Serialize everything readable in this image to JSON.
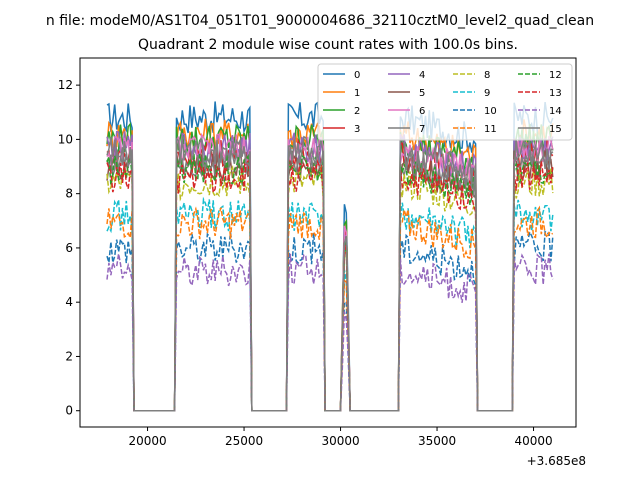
{
  "figure": {
    "suptitle": "n file: modeM0/AS1T04_051T01_9000004686_32110cztM0_level2_quad_clean",
    "offset_label": "+3.685e8"
  },
  "chart_data": {
    "type": "line",
    "title": "Quadrant 2 module wise count rates with 100.0s bins.",
    "xlabel": "",
    "ylabel": "",
    "xlim": [
      16500,
      42200
    ],
    "ylim": [
      -0.6,
      13.0
    ],
    "x_offset": 368500000,
    "xticks": [
      20000,
      25000,
      30000,
      35000,
      40000
    ],
    "xtick_labels": [
      "20000",
      "25000",
      "30000",
      "35000",
      "40000"
    ],
    "yticks": [
      0,
      2,
      4,
      6,
      8,
      10,
      12
    ],
    "ytick_labels": [
      "0",
      "2",
      "4",
      "6",
      "8",
      "10",
      "12"
    ],
    "grid": false,
    "legend_placement": "top-right",
    "legend_columns": 4,
    "bin_seconds": 100,
    "segments": [
      {
        "start": 17900,
        "end": 19200
      },
      {
        "start": 21500,
        "end": 25300
      },
      {
        "start": 27300,
        "end": 29100
      },
      {
        "start": 30100,
        "end": 30400
      },
      {
        "start": 33100,
        "end": 37000
      },
      {
        "start": 39000,
        "end": 41000
      }
    ],
    "series": [
      {
        "name": "0",
        "color": "#1f77b4",
        "style": "solid",
        "level": 10.8
      },
      {
        "name": "1",
        "color": "#ff7f0e",
        "style": "solid",
        "level": 10.2
      },
      {
        "name": "2",
        "color": "#2ca02c",
        "style": "solid",
        "level": 10.0
      },
      {
        "name": "3",
        "color": "#d62728",
        "style": "solid",
        "level": 9.4
      },
      {
        "name": "4",
        "color": "#9467bd",
        "style": "solid",
        "level": 9.7
      },
      {
        "name": "5",
        "color": "#8c564b",
        "style": "solid",
        "level": 9.0
      },
      {
        "name": "6",
        "color": "#e377c2",
        "style": "solid",
        "level": 9.6
      },
      {
        "name": "7",
        "color": "#7f7f7f",
        "style": "solid",
        "level": 9.2
      },
      {
        "name": "8",
        "color": "#bcbd22",
        "style": "dashed",
        "level": 8.4
      },
      {
        "name": "9",
        "color": "#17becf",
        "style": "dashed",
        "level": 7.2
      },
      {
        "name": "10",
        "color": "#1f77b4",
        "style": "dashed",
        "level": 6.0
      },
      {
        "name": "11",
        "color": "#ff7f0e",
        "style": "dashed",
        "level": 6.9
      },
      {
        "name": "12",
        "color": "#2ca02c",
        "style": "dashed",
        "level": 8.9
      },
      {
        "name": "13",
        "color": "#d62728",
        "style": "dashed",
        "level": 8.6
      },
      {
        "name": "14",
        "color": "#9467bd",
        "style": "dashed",
        "level": 5.2
      },
      {
        "name": "15",
        "color": "#7f7f7f",
        "style": "solid",
        "level": 9.5
      }
    ]
  }
}
